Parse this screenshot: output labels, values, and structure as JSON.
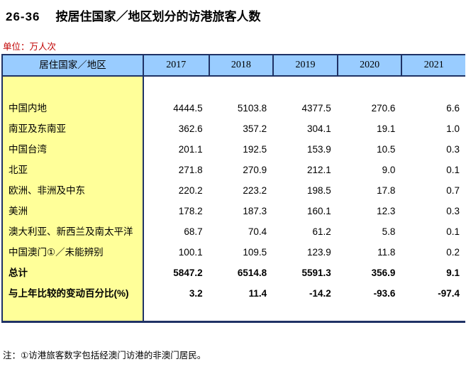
{
  "title": {
    "code": "26-36",
    "text": "按居住国家／地区划分的访港旅客人数"
  },
  "unit_label": "单位：万人次",
  "table": {
    "header": {
      "label_col": "居住国家／地区",
      "years": [
        "2017",
        "2018",
        "2019",
        "2020",
        "2021"
      ]
    },
    "rows": [
      {
        "label": "中国内地",
        "values": [
          "4444.5",
          "5103.8",
          "4377.5",
          "270.6",
          "6.6"
        ],
        "bold": false
      },
      {
        "label": "南亚及东南亚",
        "values": [
          "362.6",
          "357.2",
          "304.1",
          "19.1",
          "1.0"
        ],
        "bold": false
      },
      {
        "label": "中国台湾",
        "values": [
          "201.1",
          "192.5",
          "153.9",
          "10.5",
          "0.3"
        ],
        "bold": false
      },
      {
        "label": "北亚",
        "values": [
          "271.8",
          "270.9",
          "212.1",
          "9.0",
          "0.1"
        ],
        "bold": false
      },
      {
        "label": "欧洲、非洲及中东",
        "values": [
          "220.2",
          "223.2",
          "198.5",
          "17.8",
          "0.7"
        ],
        "bold": false
      },
      {
        "label": "美洲",
        "values": [
          "178.2",
          "187.3",
          "160.1",
          "12.3",
          "0.3"
        ],
        "bold": false
      },
      {
        "label": "澳大利亚、新西兰及南太平洋",
        "values": [
          "68.7",
          "70.4",
          "61.2",
          "5.8",
          "0.1"
        ],
        "bold": false
      },
      {
        "label": "中国澳门①／未能辨别",
        "values": [
          "100.1",
          "109.5",
          "123.9",
          "11.8",
          "0.2"
        ],
        "bold": false
      },
      {
        "label": "总计",
        "values": [
          "5847.2",
          "6514.8",
          "5591.3",
          "356.9",
          "9.1"
        ],
        "bold": true
      },
      {
        "label": "与上年比较的变动百分比(%)",
        "values": [
          "3.2",
          "11.4",
          "-14.2",
          "-93.6",
          "-97.4"
        ],
        "bold": true
      }
    ]
  },
  "note": "注：①访港旅客数字包括经澳门访港的非澳门居民。",
  "colors": {
    "header_bg": "#99CCFF",
    "label_bg": "#FFFF99",
    "border": "#1F3265",
    "unit_text": "#C00000"
  }
}
